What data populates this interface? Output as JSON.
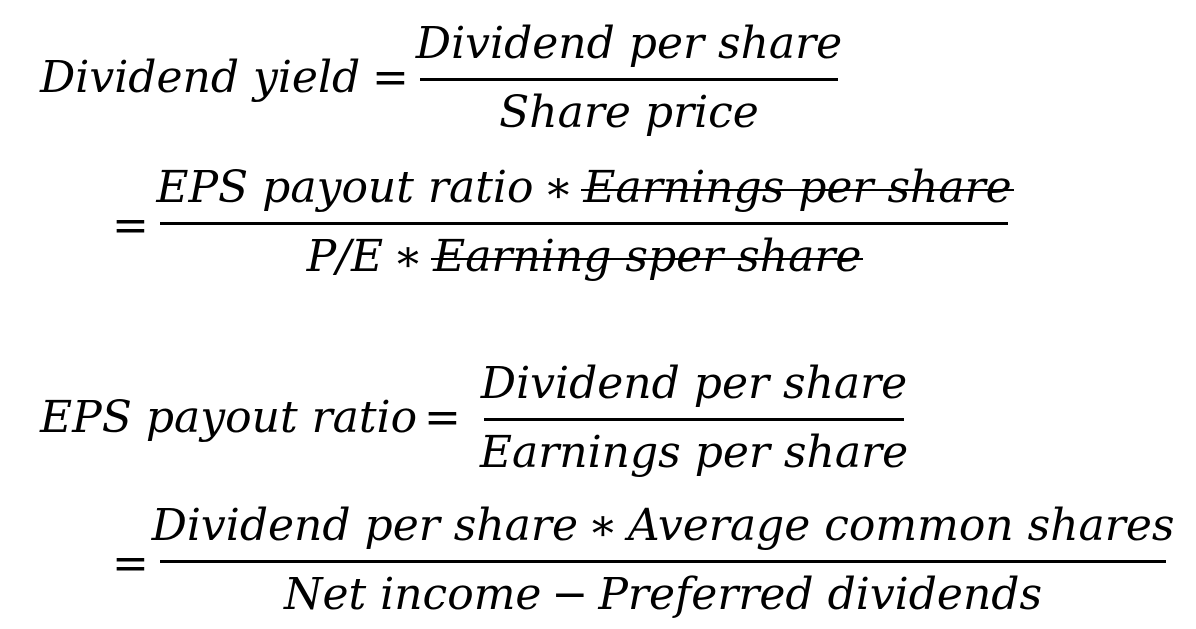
{
  "block1": {
    "lhs": "Dividend yield",
    "eq1": "=",
    "frac1": {
      "numerator": "Dividend per share",
      "denominator": "Share price"
    },
    "eq2": "=",
    "frac2": {
      "numerator": {
        "term": "EPS payout ratio",
        "op": "∗",
        "struck": "Earnings per share"
      },
      "denominator": {
        "term": "P/E",
        "op": "∗",
        "struck": "Earning sper share"
      }
    }
  },
  "block2": {
    "lhs": "EPS payout ratio",
    "eq1": "=",
    "frac1": {
      "numerator": "Dividend per share",
      "denominator": "Earnings per share"
    },
    "eq2": "=",
    "frac2": {
      "numerator": {
        "term": "Dividend per share",
        "op": "∗",
        "term2": "Average common shares"
      },
      "denominator": {
        "term": "Net income",
        "op": "−",
        "term2": "Preferred dividends"
      }
    }
  }
}
